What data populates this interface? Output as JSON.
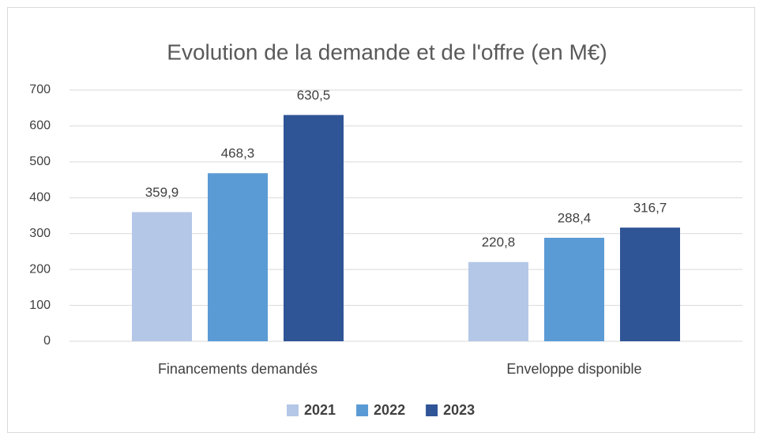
{
  "chart_data": {
    "type": "bar",
    "title": "Evolution de la demande et de l'offre (en M€)",
    "categories": [
      "Financements demandés",
      "Enveloppe disponible"
    ],
    "series": [
      {
        "name": "2021",
        "color": "#b4c7e7",
        "values": [
          359.9,
          220.8
        ],
        "value_labels": [
          "359,9",
          "220,8"
        ]
      },
      {
        "name": "2022",
        "color": "#5b9bd5",
        "values": [
          468.3,
          288.4
        ],
        "value_labels": [
          "468,3",
          "288,4"
        ]
      },
      {
        "name": "2023",
        "color": "#2f5597",
        "values": [
          630.5,
          316.7
        ],
        "value_labels": [
          "630,5",
          "316,7"
        ]
      }
    ],
    "ylim": [
      0,
      700
    ],
    "yticks": [
      0,
      100,
      200,
      300,
      400,
      500,
      600,
      700
    ],
    "grid": true,
    "legend": "bottom"
  }
}
